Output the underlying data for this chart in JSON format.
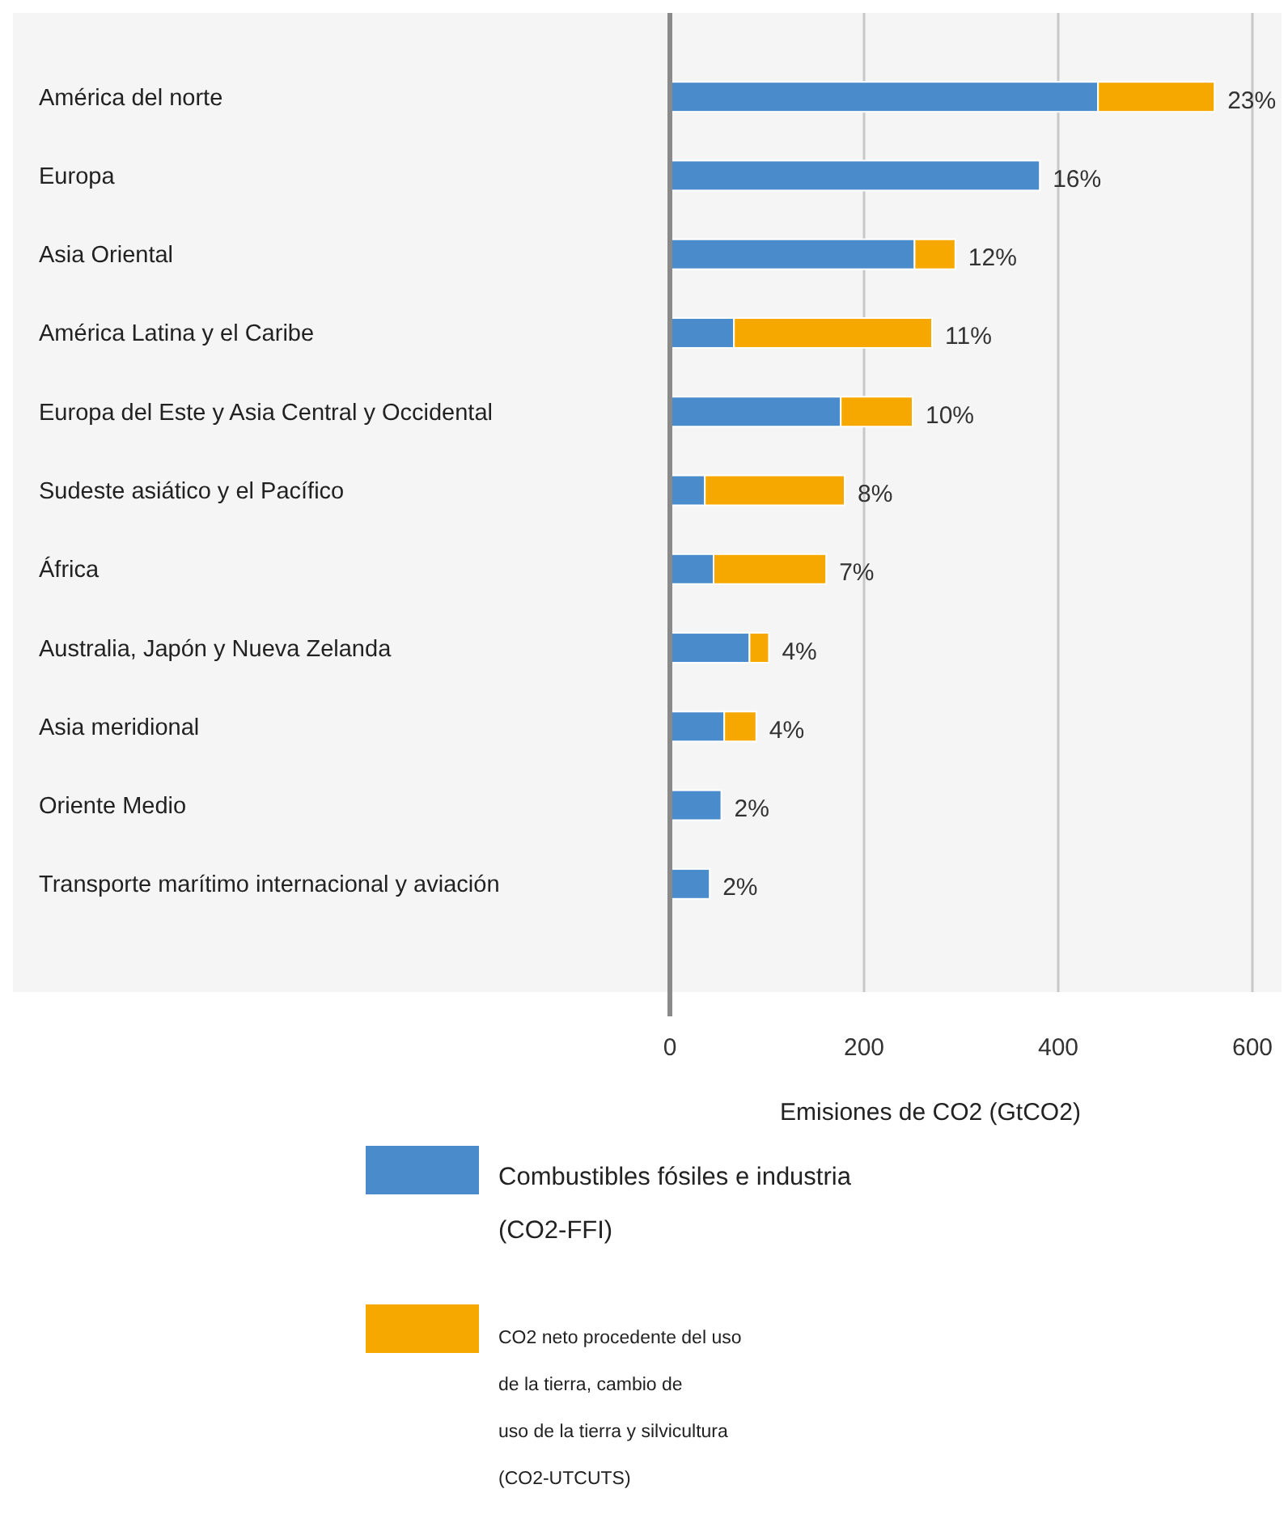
{
  "chart_data": {
    "type": "bar",
    "orientation": "horizontal",
    "stacked": true,
    "xlabel": "Emisiones de CO2 (GtCO2)",
    "categories": [
      "América del norte",
      "Europa",
      "Asia Oriental",
      "América Latina y el Caribe",
      "Europa del Este y Asia Central y Occidental",
      "Sudeste asiático y el Pacífico",
      "África",
      "Australia, Japón y Nueva Zelanda",
      "Asia meridional",
      "Oriente Medio",
      "Transporte marítimo internacional y aviación"
    ],
    "series": [
      {
        "name": "Combustibles fósiles e industria\n(CO2-FFI)",
        "color": "#4a8ccb",
        "values": [
          441,
          381,
          252,
          66,
          176,
          36,
          45,
          82,
          56,
          53,
          41
        ]
      },
      {
        "name": "CO2 neto procedente del uso\nde la tierra, cambio de\nuso de la tierra y silvicultura\n(CO2-UTCUTS)",
        "color": "#f7a800",
        "values": [
          120,
          null,
          42,
          204,
          74,
          144,
          116,
          20,
          33,
          null,
          null
        ]
      }
    ],
    "annotations": [
      {
        "text": "23%",
        "x": 561,
        "y": "América del norte"
      },
      {
        "text": "16%",
        "x": 381,
        "y": "Europa"
      },
      {
        "text": "12%",
        "x": 294,
        "y": "Asia Oriental"
      },
      {
        "text": "11%",
        "x": 270,
        "y": "América Latina y el Caribe"
      },
      {
        "text": "10%",
        "x": 250,
        "y": "Europa del Este y Asia Central y Occidental"
      },
      {
        "text": "8%",
        "x": 180,
        "y": "Sudeste asiático y el Pacífico"
      },
      {
        "text": "7%",
        "x": 161,
        "y": "África"
      },
      {
        "text": "4%",
        "x": 102,
        "y": "Australia, Japón y Nueva Zelanda"
      },
      {
        "text": "4%",
        "x": 89,
        "y": "Asia meridional"
      },
      {
        "text": "2%",
        "x": 53,
        "y": "Oriente Medio"
      },
      {
        "text": "2%",
        "x": 41,
        "y": "Transporte marítimo internacional y aviación"
      }
    ],
    "xlim": [
      0,
      630
    ],
    "xticks": [
      0,
      200,
      400,
      600
    ],
    "grid": "x",
    "legend": "bottom"
  }
}
